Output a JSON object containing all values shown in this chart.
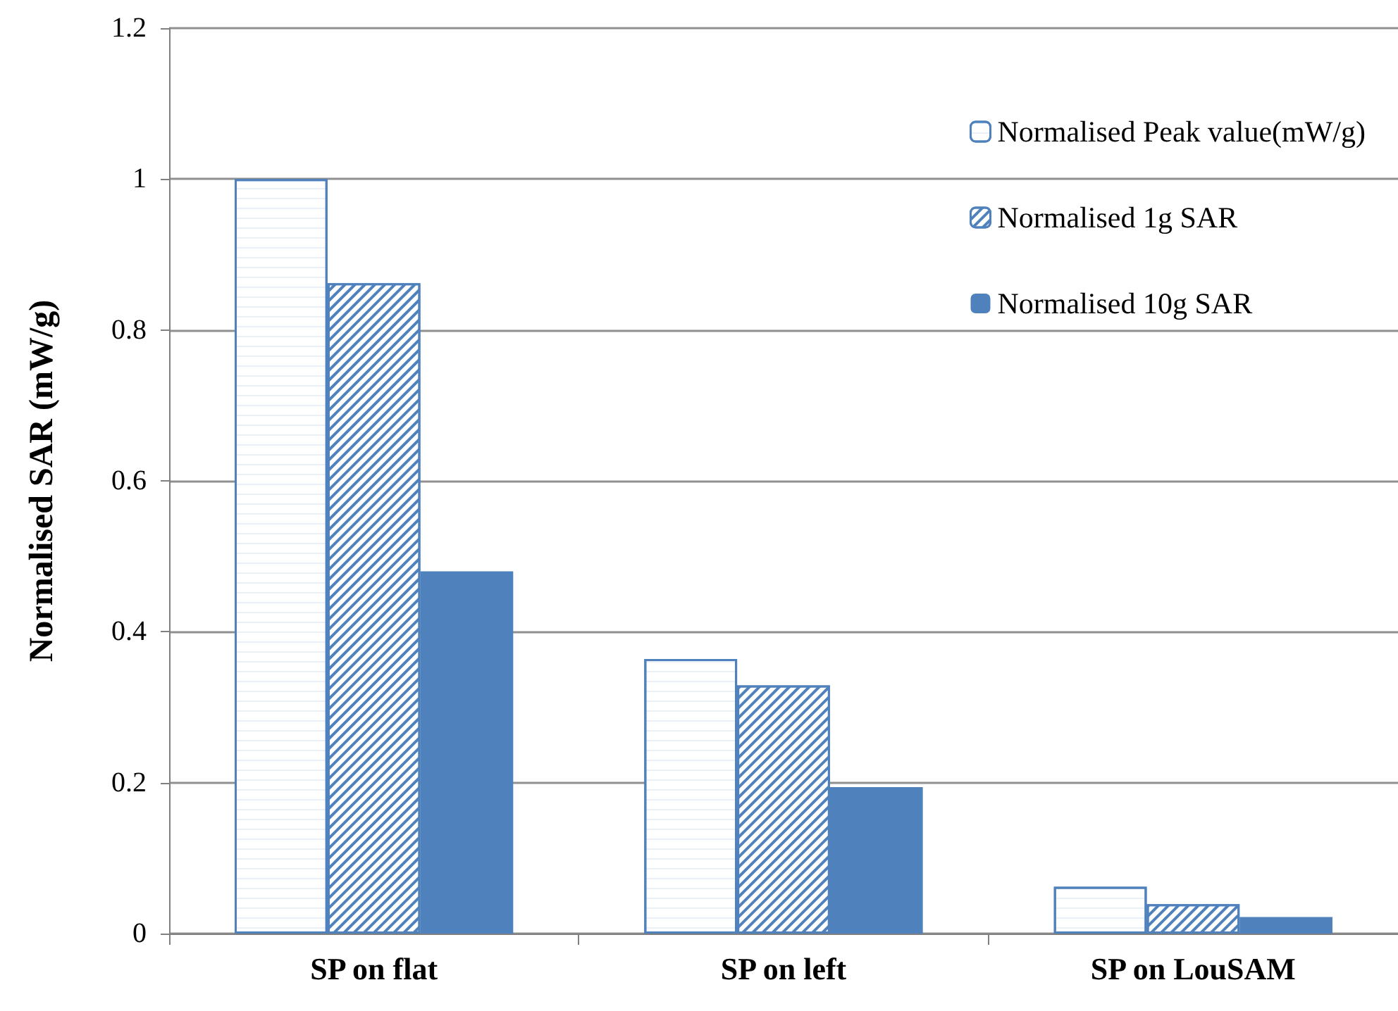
{
  "chart_data": {
    "type": "bar",
    "ylabel": "Normalised SAR (mW/g)",
    "categories": [
      "SP on flat",
      "SP on left",
      "SP on LouSAM"
    ],
    "series": [
      {
        "name": "Normalised Peak value(mW/g)",
        "color": "#4f81bd",
        "values": [
          1.0,
          0.364,
          0.062
        ]
      },
      {
        "name": "Normalised 1g SAR",
        "color": "#4f81bd",
        "values": [
          0.862,
          0.329,
          0.039
        ]
      },
      {
        "name": "Normalised 10g SAR",
        "color": "#4f81bd",
        "values": [
          0.48,
          0.194,
          0.022
        ]
      }
    ],
    "ylim": [
      0,
      1.2
    ],
    "yticks": [
      0,
      0.2,
      0.4,
      0.6,
      0.8,
      1,
      1.2
    ],
    "grid": "y",
    "legend": "top right"
  }
}
